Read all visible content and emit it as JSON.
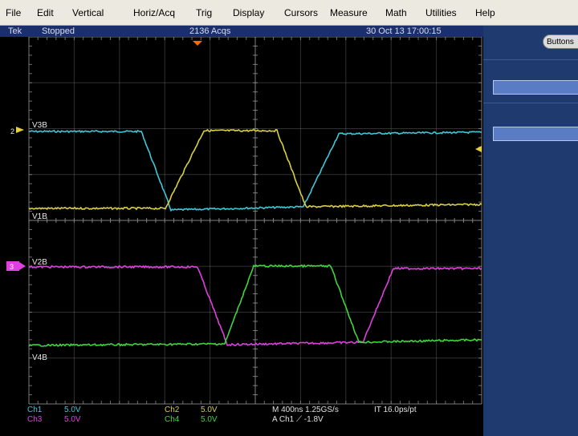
{
  "menu": [
    "File",
    "Edit",
    "Vertical",
    "Horiz/Acq",
    "Trig",
    "Display",
    "Cursors",
    "Measure",
    "Math",
    "Utilities",
    "Help"
  ],
  "status": {
    "brand": "Tek",
    "state": "Stopped",
    "acqs": "2136 Acqs",
    "datetime": "30 Oct 13 17:00:15"
  },
  "side_panel": {
    "buttons_label": "Buttons"
  },
  "waveform_labels": {
    "ch2_marker": "2",
    "ch3_marker": "3",
    "v3b": "V3B",
    "v1b": "V1B",
    "v2b": "V2B",
    "v4b": "V4B"
  },
  "readout": {
    "ch1_name": "Ch1",
    "ch1_scale": "5.0V",
    "ch3_name": "Ch3",
    "ch3_scale": "5.0V",
    "ch2_name": "Ch2",
    "ch2_scale": "5.0V",
    "ch4_name": "Ch4",
    "ch4_scale": "5.0V",
    "timebase": "M 400ns 1.25GS/s",
    "it": "IT 16.0ps/pt",
    "trigger": "A  Ch1  ⟋  -1.8V"
  },
  "colors": {
    "cyan": "#3ec8d8",
    "yellow": "#d8d040",
    "magenta": "#e040e0",
    "green": "#3cd83c",
    "grid": "#8a8a8a"
  }
}
